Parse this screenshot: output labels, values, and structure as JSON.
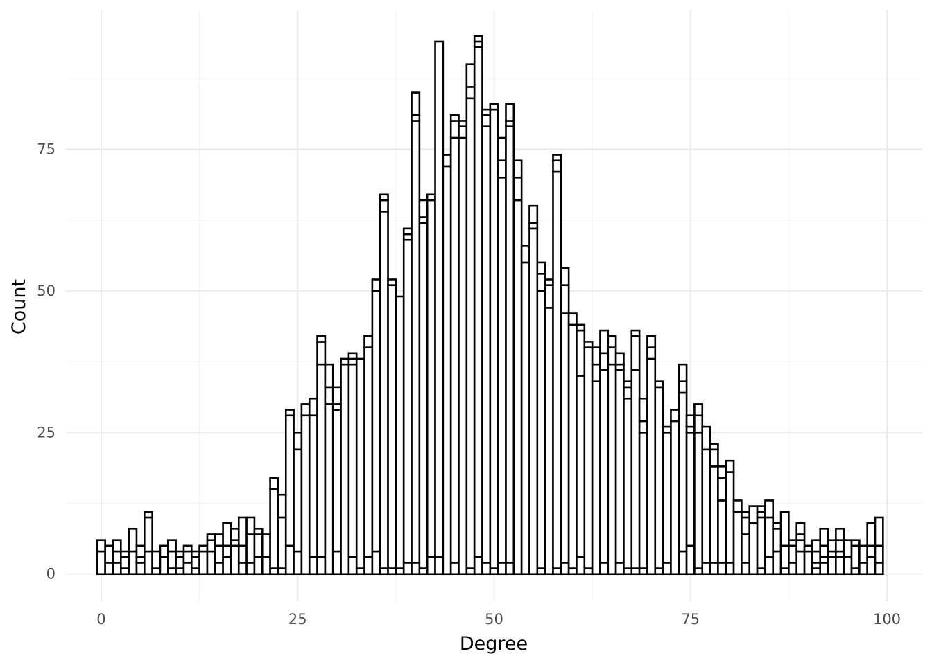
{
  "chart_data": {
    "type": "bar",
    "subtype": "stacked histogram",
    "title": "",
    "xlabel": "Degree",
    "ylabel": "Count",
    "xlim": [
      -4.5,
      104.5
    ],
    "ylim": [
      -4.8,
      99.5
    ],
    "x_ticks": [
      0,
      25,
      50,
      75,
      100
    ],
    "x_tick_labels": [
      "0",
      "25",
      "50",
      "75",
      "100"
    ],
    "y_ticks": [
      0,
      25,
      50,
      75
    ],
    "y_tick_labels": [
      "0",
      "25",
      "50",
      "75"
    ],
    "grid": true,
    "legend": "none",
    "bar_fill": "#ffffff",
    "bar_outline": "#000000",
    "bins": [
      {
        "x": 0,
        "stack": [
          4,
          6
        ]
      },
      {
        "x": 1,
        "stack": [
          2,
          5
        ]
      },
      {
        "x": 2,
        "stack": [
          2,
          4,
          6
        ]
      },
      {
        "x": 3,
        "stack": [
          1,
          3,
          4
        ]
      },
      {
        "x": 4,
        "stack": [
          4,
          8
        ]
      },
      {
        "x": 5,
        "stack": [
          2,
          3,
          5
        ]
      },
      {
        "x": 6,
        "stack": [
          4,
          10,
          11
        ]
      },
      {
        "x": 7,
        "stack": [
          1,
          4
        ]
      },
      {
        "x": 8,
        "stack": [
          3,
          5
        ]
      },
      {
        "x": 9,
        "stack": [
          1,
          4,
          6
        ]
      },
      {
        "x": 10,
        "stack": [
          1,
          3,
          4
        ]
      },
      {
        "x": 11,
        "stack": [
          2,
          4,
          5
        ]
      },
      {
        "x": 12,
        "stack": [
          1,
          3,
          4
        ]
      },
      {
        "x": 13,
        "stack": [
          4,
          5
        ]
      },
      {
        "x": 14,
        "stack": [
          4,
          6,
          7
        ]
      },
      {
        "x": 15,
        "stack": [
          2,
          5,
          7
        ]
      },
      {
        "x": 16,
        "stack": [
          3,
          5,
          9
        ]
      },
      {
        "x": 17,
        "stack": [
          5,
          6,
          8
        ]
      },
      {
        "x": 18,
        "stack": [
          2,
          5,
          10
        ]
      },
      {
        "x": 19,
        "stack": [
          2,
          7,
          10
        ]
      },
      {
        "x": 20,
        "stack": [
          3,
          7,
          8
        ]
      },
      {
        "x": 21,
        "stack": [
          3,
          7
        ]
      },
      {
        "x": 22,
        "stack": [
          1,
          15,
          17
        ]
      },
      {
        "x": 23,
        "stack": [
          1,
          10,
          14
        ]
      },
      {
        "x": 24,
        "stack": [
          5,
          28,
          29
        ]
      },
      {
        "x": 25,
        "stack": [
          4,
          22,
          25
        ]
      },
      {
        "x": 26,
        "stack": [
          28,
          30
        ]
      },
      {
        "x": 27,
        "stack": [
          3,
          28,
          31
        ]
      },
      {
        "x": 28,
        "stack": [
          3,
          37,
          41,
          42
        ]
      },
      {
        "x": 29,
        "stack": [
          30,
          33,
          37
        ]
      },
      {
        "x": 30,
        "stack": [
          4,
          29,
          30,
          33
        ]
      },
      {
        "x": 31,
        "stack": [
          37,
          38
        ]
      },
      {
        "x": 32,
        "stack": [
          3,
          37,
          38,
          39
        ]
      },
      {
        "x": 33,
        "stack": [
          1,
          38
        ]
      },
      {
        "x": 34,
        "stack": [
          3,
          40,
          42
        ]
      },
      {
        "x": 35,
        "stack": [
          4,
          50,
          52
        ]
      },
      {
        "x": 36,
        "stack": [
          1,
          64,
          66,
          67
        ]
      },
      {
        "x": 37,
        "stack": [
          1,
          51,
          52
        ]
      },
      {
        "x": 38,
        "stack": [
          1,
          49
        ]
      },
      {
        "x": 39,
        "stack": [
          2,
          59,
          60,
          61
        ]
      },
      {
        "x": 40,
        "stack": [
          2,
          80,
          81,
          85
        ]
      },
      {
        "x": 41,
        "stack": [
          1,
          62,
          63,
          66
        ]
      },
      {
        "x": 42,
        "stack": [
          3,
          66,
          67
        ]
      },
      {
        "x": 43,
        "stack": [
          3,
          94
        ]
      },
      {
        "x": 44,
        "stack": [
          72,
          74
        ]
      },
      {
        "x": 45,
        "stack": [
          2,
          77,
          80,
          81
        ]
      },
      {
        "x": 46,
        "stack": [
          77,
          79,
          80
        ]
      },
      {
        "x": 47,
        "stack": [
          1,
          84,
          86,
          90
        ]
      },
      {
        "x": 48,
        "stack": [
          3,
          93,
          94,
          95
        ]
      },
      {
        "x": 49,
        "stack": [
          2,
          79,
          81,
          82
        ]
      },
      {
        "x": 50,
        "stack": [
          1,
          82,
          83
        ]
      },
      {
        "x": 51,
        "stack": [
          2,
          70,
          73,
          77
        ]
      },
      {
        "x": 52,
        "stack": [
          2,
          79,
          80,
          83
        ]
      },
      {
        "x": 53,
        "stack": [
          66,
          70,
          73
        ]
      },
      {
        "x": 54,
        "stack": [
          55,
          58
        ]
      },
      {
        "x": 55,
        "stack": [
          61,
          62,
          65
        ]
      },
      {
        "x": 56,
        "stack": [
          1,
          50,
          53,
          55
        ]
      },
      {
        "x": 57,
        "stack": [
          47,
          51,
          52
        ]
      },
      {
        "x": 58,
        "stack": [
          1,
          71,
          73,
          74
        ]
      },
      {
        "x": 59,
        "stack": [
          2,
          46,
          51,
          54
        ]
      },
      {
        "x": 60,
        "stack": [
          1,
          44,
          46
        ]
      },
      {
        "x": 61,
        "stack": [
          3,
          35,
          43,
          44
        ]
      },
      {
        "x": 62,
        "stack": [
          1,
          40,
          41
        ]
      },
      {
        "x": 63,
        "stack": [
          34,
          37,
          40
        ]
      },
      {
        "x": 64,
        "stack": [
          2,
          36,
          39,
          43
        ]
      },
      {
        "x": 65,
        "stack": [
          37,
          40,
          42
        ]
      },
      {
        "x": 66,
        "stack": [
          2,
          36,
          37,
          39
        ]
      },
      {
        "x": 67,
        "stack": [
          1,
          31,
          33,
          34
        ]
      },
      {
        "x": 68,
        "stack": [
          1,
          36,
          42,
          43
        ]
      },
      {
        "x": 69,
        "stack": [
          1,
          25,
          27,
          31
        ]
      },
      {
        "x": 70,
        "stack": [
          38,
          40,
          42
        ]
      },
      {
        "x": 71,
        "stack": [
          1,
          33,
          34
        ]
      },
      {
        "x": 72,
        "stack": [
          2,
          25,
          26
        ]
      },
      {
        "x": 73,
        "stack": [
          27,
          29
        ]
      },
      {
        "x": 74,
        "stack": [
          4,
          32,
          34,
          37
        ]
      },
      {
        "x": 75,
        "stack": [
          5,
          25,
          26,
          28
        ]
      },
      {
        "x": 76,
        "stack": [
          1,
          25,
          28,
          30
        ]
      },
      {
        "x": 77,
        "stack": [
          2,
          22,
          26
        ]
      },
      {
        "x": 78,
        "stack": [
          2,
          19,
          22,
          23
        ]
      },
      {
        "x": 79,
        "stack": [
          2,
          13,
          17,
          19
        ]
      },
      {
        "x": 80,
        "stack": [
          2,
          18,
          20
        ]
      },
      {
        "x": 81,
        "stack": [
          11,
          13
        ]
      },
      {
        "x": 82,
        "stack": [
          2,
          7,
          10,
          11
        ]
      },
      {
        "x": 83,
        "stack": [
          9,
          12
        ]
      },
      {
        "x": 84,
        "stack": [
          1,
          10,
          11,
          12
        ]
      },
      {
        "x": 85,
        "stack": [
          3,
          10,
          13
        ]
      },
      {
        "x": 86,
        "stack": [
          4,
          8,
          9
        ]
      },
      {
        "x": 87,
        "stack": [
          1,
          5,
          11
        ]
      },
      {
        "x": 88,
        "stack": [
          2,
          5,
          6
        ]
      },
      {
        "x": 89,
        "stack": [
          4,
          6,
          7,
          9
        ]
      },
      {
        "x": 90,
        "stack": [
          4,
          5
        ]
      },
      {
        "x": 91,
        "stack": [
          1,
          2,
          4,
          6
        ]
      },
      {
        "x": 92,
        "stack": [
          2,
          3,
          5,
          8
        ]
      },
      {
        "x": 93,
        "stack": [
          3,
          4,
          6
        ]
      },
      {
        "x": 94,
        "stack": [
          3,
          4,
          6,
          8
        ]
      },
      {
        "x": 95,
        "stack": [
          3,
          6
        ]
      },
      {
        "x": 96,
        "stack": [
          1,
          5,
          6
        ]
      },
      {
        "x": 97,
        "stack": [
          2,
          5
        ]
      },
      {
        "x": 98,
        "stack": [
          3,
          5,
          9
        ]
      },
      {
        "x": 99,
        "stack": [
          2,
          5,
          10
        ]
      }
    ]
  }
}
